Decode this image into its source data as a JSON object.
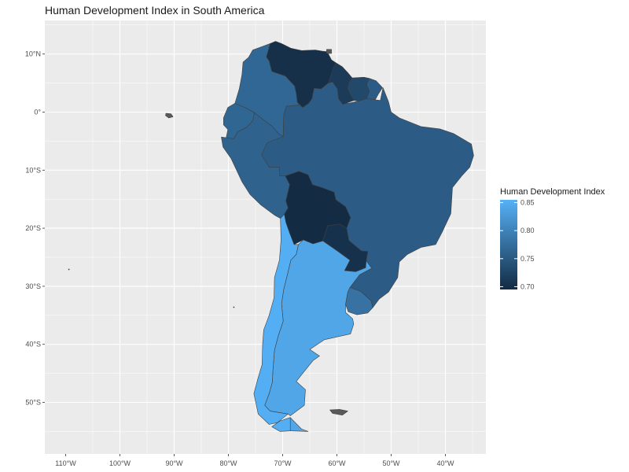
{
  "title": "Human Development Index in South America",
  "legend": {
    "title": "Human Development Index",
    "min": 0.695,
    "max": 0.855,
    "low_color": "#132B43",
    "high_color": "#56B1F7",
    "breaks": [
      0.7,
      0.75,
      0.8,
      0.85
    ],
    "break_labels": [
      "0.70",
      "0.75",
      "0.80",
      "0.85"
    ]
  },
  "axes": {
    "x_ticks": [
      -110,
      -100,
      -90,
      -80,
      -70,
      -60,
      -50,
      -40
    ],
    "x_labels": [
      "110°W",
      "100°W",
      "90°W",
      "80°W",
      "70°W",
      "60°W",
      "50°W",
      "40°W"
    ],
    "y_ticks": [
      10,
      0,
      -10,
      -20,
      -30,
      -40,
      -50
    ],
    "y_labels": [
      "10°N",
      "0°",
      "10°S",
      "20°S",
      "30°S",
      "40°S",
      "50°S"
    ],
    "lon_range": [
      -112,
      -30
    ],
    "lat_range": [
      15,
      -59
    ]
  },
  "colors": {
    "panel": "#ebebeb",
    "grid": "#ffffff",
    "border": "#3f3f3f"
  },
  "chart_data": {
    "type": "map",
    "region": "South America",
    "countries": [
      {
        "name": "Venezuela",
        "hdi": 0.701
      },
      {
        "name": "Colombia",
        "hdi": 0.767
      },
      {
        "name": "Ecuador",
        "hdi": 0.765
      },
      {
        "name": "Peru",
        "hdi": 0.762
      },
      {
        "name": "Brazil",
        "hdi": 0.754
      },
      {
        "name": "Bolivia",
        "hdi": 0.696
      },
      {
        "name": "Paraguay",
        "hdi": 0.702
      },
      {
        "name": "Uruguay",
        "hdi": 0.78
      },
      {
        "name": "Argentina",
        "hdi": 0.842
      },
      {
        "name": "Chile",
        "hdi": 0.851
      },
      {
        "name": "Guyana",
        "hdi": 0.714
      },
      {
        "name": "Suriname",
        "hdi": 0.73
      }
    ]
  }
}
